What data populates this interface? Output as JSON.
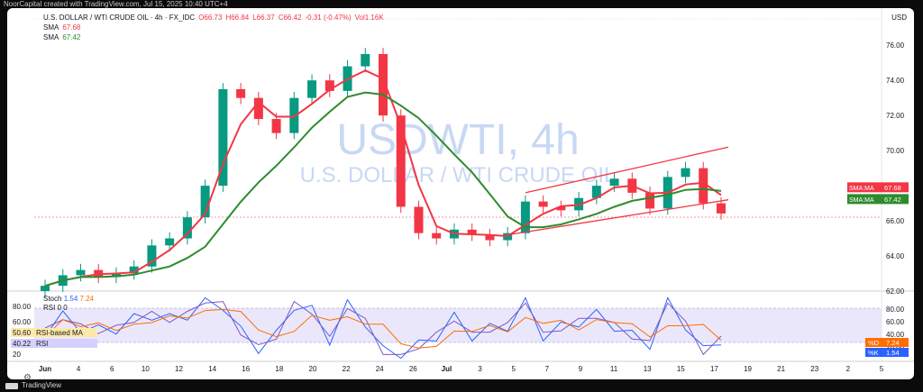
{
  "topbar": {
    "text": "NoorCapital created with TradingView.com, Jul 15, 2025 10:40 UTC+4"
  },
  "legend": {
    "symbol": "U.S. DOLLAR / WTI CRUDE OIL · 4h · FX_IDC",
    "o": "O66.73",
    "h": "H66.84",
    "l": "L66.37",
    "c": "C66.42",
    "change": "-0.31 (-0.47%)",
    "vol": "Vol1.16K",
    "sma1_label": "SMA",
    "sma1_value": "67.68",
    "sma2_label": "SMA",
    "sma2_value": "67.42"
  },
  "currency": "USD",
  "watermark": {
    "title": "USDWTI, 4h",
    "subtitle": "U.S. DOLLAR / WTI CRUDE OIL"
  },
  "price_axis": {
    "ticks": [
      "76.00",
      "74.00",
      "72.00",
      "70.00",
      "68.00",
      "66.00",
      "64.00",
      "62.00"
    ]
  },
  "price_tags": {
    "sma1": {
      "label": "SMA:MA",
      "value": "67.68"
    },
    "sma2": {
      "label": "SMA:MA",
      "value": "67.42"
    }
  },
  "time_axis": {
    "ticks": [
      "Jun",
      "4",
      "6",
      "10",
      "12",
      "14",
      "16",
      "18",
      "20",
      "22",
      "24",
      "26",
      "Jul",
      "3",
      "5",
      "7",
      "9",
      "11",
      "13",
      "15",
      "17",
      "19",
      "21",
      "23",
      "2",
      "5"
    ]
  },
  "oscillator": {
    "stoch_label": "Stoch",
    "stoch_k": "1.54",
    "stoch_d": "7.24",
    "rsi_label": "RSI",
    "rsi_extra": "0 0",
    "left_tags": [
      {
        "value": "80.00"
      },
      {
        "value": "60.00"
      },
      {
        "value": "50.60",
        "label": "RSI-based MA"
      },
      {
        "value": "40.22",
        "label": "RSI"
      },
      {
        "value": "20"
      }
    ],
    "axis_ticks": [
      "80.00",
      "60.00",
      "40.00",
      "20.00"
    ],
    "right_tags": [
      {
        "label": "%D",
        "value": "7.24"
      },
      {
        "label": "%K",
        "value": "1.54"
      }
    ]
  },
  "bottombar": {
    "brand": "TradingView"
  },
  "colors": {
    "up": "#089981",
    "down": "#f23645",
    "sma_fast": "#f23645",
    "sma_slow": "#2e8b2e",
    "rsi": "#2962ff",
    "osc_band": "#e1dcf7",
    "channel": "#f23645"
  },
  "chart_data": {
    "type": "candlestick",
    "title": "U.S. DOLLAR / WTI CRUDE OIL · 4h · FX_IDC",
    "ylim": [
      62,
      77.5
    ],
    "close_series": [
      {
        "x": "Jun 2",
        "y": 62.3
      },
      {
        "x": "Jun 3",
        "y": 62.9
      },
      {
        "x": "Jun 4",
        "y": 63.2
      },
      {
        "x": "Jun 5",
        "y": 62.8
      },
      {
        "x": "Jun 6",
        "y": 63.0
      },
      {
        "x": "Jun 7",
        "y": 63.4
      },
      {
        "x": "Jun 9",
        "y": 64.6
      },
      {
        "x": "Jun 10",
        "y": 65.0
      },
      {
        "x": "Jun 11",
        "y": 66.2
      },
      {
        "x": "Jun 12",
        "y": 68.0
      },
      {
        "x": "Jun 13",
        "y": 73.5
      },
      {
        "x": "Jun 14",
        "y": 73.0
      },
      {
        "x": "Jun 16",
        "y": 71.8
      },
      {
        "x": "Jun 17",
        "y": 71.0
      },
      {
        "x": "Jun 18",
        "y": 73.0
      },
      {
        "x": "Jun 19",
        "y": 74.0
      },
      {
        "x": "Jun 20",
        "y": 73.4
      },
      {
        "x": "Jun 21",
        "y": 74.8
      },
      {
        "x": "Jun 22",
        "y": 75.5
      },
      {
        "x": "Jun 23",
        "y": 72.0
      },
      {
        "x": "Jun 24",
        "y": 66.8
      },
      {
        "x": "Jun 25",
        "y": 65.3
      },
      {
        "x": "Jun 26",
        "y": 65.0
      },
      {
        "x": "Jun 27",
        "y": 65.5
      },
      {
        "x": "Jun 30",
        "y": 65.2
      },
      {
        "x": "Jul 1",
        "y": 64.9
      },
      {
        "x": "Jul 2",
        "y": 65.3
      },
      {
        "x": "Jul 3",
        "y": 67.1
      },
      {
        "x": "Jul 4",
        "y": 66.8
      },
      {
        "x": "Jul 5",
        "y": 66.6
      },
      {
        "x": "Jul 7",
        "y": 67.3
      },
      {
        "x": "Jul 8",
        "y": 68.0
      },
      {
        "x": "Jul 9",
        "y": 68.4
      },
      {
        "x": "Jul 10",
        "y": 67.6
      },
      {
        "x": "Jul 11",
        "y": 66.7
      },
      {
        "x": "Jul 12",
        "y": 68.5
      },
      {
        "x": "Jul 13",
        "y": 69.0
      },
      {
        "x": "Jul 14",
        "y": 67.0
      },
      {
        "x": "Jul 15",
        "y": 66.42
      }
    ],
    "series": [
      {
        "name": "SMA",
        "value": 67.68
      },
      {
        "name": "SMA",
        "value": 67.42
      }
    ]
  }
}
